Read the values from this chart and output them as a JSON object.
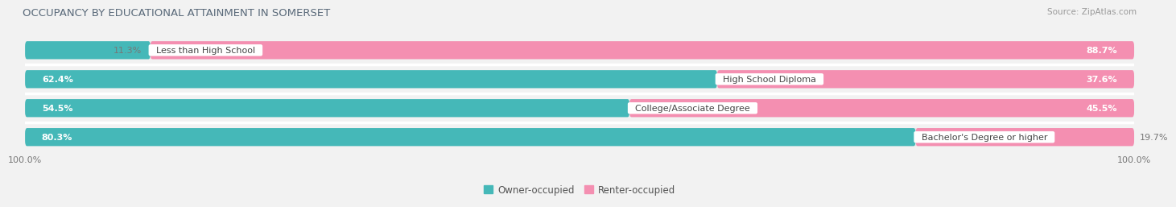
{
  "title": "OCCUPANCY BY EDUCATIONAL ATTAINMENT IN SOMERSET",
  "source": "Source: ZipAtlas.com",
  "categories": [
    "Less than High School",
    "High School Diploma",
    "College/Associate Degree",
    "Bachelor's Degree or higher"
  ],
  "owner_pct": [
    11.3,
    62.4,
    54.5,
    80.3
  ],
  "renter_pct": [
    88.7,
    37.6,
    45.5,
    19.7
  ],
  "owner_color": "#45b8b8",
  "renter_color": "#f48fb1",
  "background_color": "#f2f2f2",
  "bar_bg_color": "#e8e8e8",
  "bar_height": 0.62,
  "title_fontsize": 9.5,
  "label_fontsize": 8.0,
  "pct_fontsize": 8.0,
  "legend_fontsize": 8.5,
  "source_fontsize": 7.5,
  "owner_pct_label_color_inside": "white",
  "owner_pct_label_color_outside": "#777777",
  "renter_pct_label_color_inside": "white",
  "renter_pct_label_color_outside": "#777777",
  "category_label_color": "#444444",
  "tick_label_color": "#777777"
}
